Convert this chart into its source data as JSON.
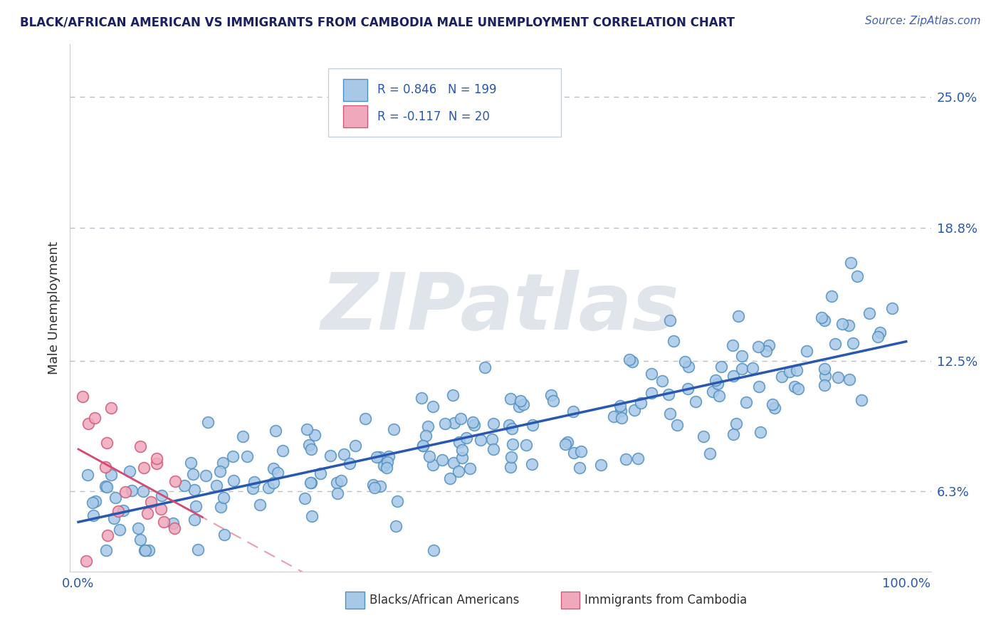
{
  "title": "BLACK/AFRICAN AMERICAN VS IMMIGRANTS FROM CAMBODIA MALE UNEMPLOYMENT CORRELATION CHART",
  "source": "Source: ZipAtlas.com",
  "ylabel": "Male Unemployment",
  "watermark": "ZIPatlas",
  "blue_R": 0.846,
  "blue_N": 199,
  "pink_R": -0.117,
  "pink_N": 20,
  "xlim": [
    -0.01,
    1.03
  ],
  "ylim": [
    0.025,
    0.275
  ],
  "ytick_vals": [
    0.063,
    0.125,
    0.188,
    0.25
  ],
  "ytick_labels": [
    "6.3%",
    "12.5%",
    "18.8%",
    "25.0%"
  ],
  "xtick_vals": [
    0.0,
    1.0
  ],
  "xtick_labels": [
    "0.0%",
    "100.0%"
  ],
  "grid_color": "#b8bfc8",
  "background_color": "#ffffff",
  "blue_dot_color": "#a8c8e8",
  "blue_dot_edge": "#5090c0",
  "pink_dot_color": "#f0a8bc",
  "pink_dot_edge": "#d05878",
  "blue_line_color": "#2858b0",
  "pink_line_color": "#d84870",
  "pink_dash_color": "#e8a0b0",
  "legend_text_color": "#2858b0",
  "title_color": "#1a2060",
  "source_color": "#4060b0",
  "watermark_color": "#ccd4e0",
  "ylabel_color": "#303030",
  "legend_border_color": "#c8d0d8"
}
